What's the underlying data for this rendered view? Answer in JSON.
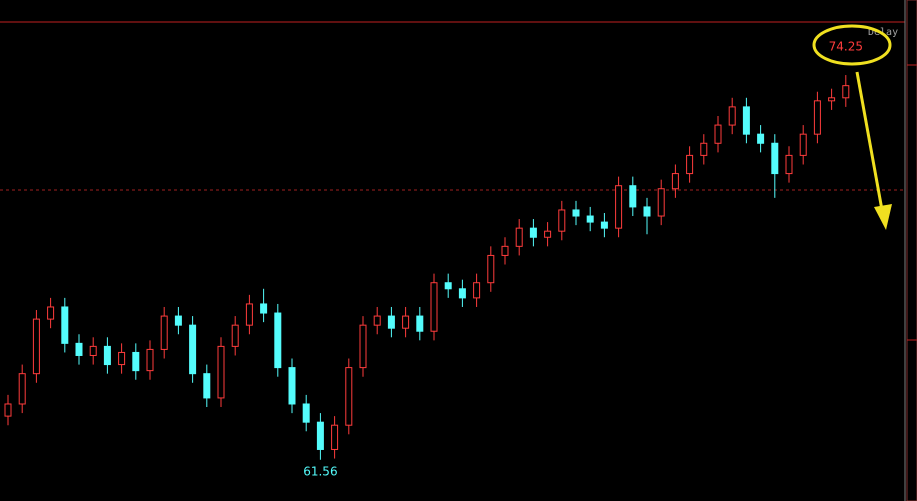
{
  "chart_data": {
    "type": "candlestick",
    "delay_label": "Delay",
    "ylim": [
      60.2,
      76.0
    ],
    "up_color": "#ff3c3c",
    "down_color": "#54fcfc",
    "reference_line": 70.46,
    "open": [
      63.0,
      63.4,
      64.4,
      66.2,
      66.6,
      65.4,
      65.0,
      65.3,
      64.7,
      65.1,
      64.5,
      65.2,
      66.3,
      66.0,
      64.4,
      63.6,
      65.3,
      66.0,
      66.7,
      66.4,
      64.6,
      63.4,
      62.8,
      61.9,
      62.7,
      64.6,
      66.0,
      66.3,
      65.9,
      66.3,
      65.8,
      67.4,
      67.2,
      66.9,
      67.4,
      68.3,
      68.6,
      69.2,
      68.9,
      69.1,
      69.8,
      69.6,
      69.4,
      69.2,
      70.6,
      69.9,
      69.6,
      70.5,
      71.0,
      71.6,
      72.0,
      72.6,
      73.2,
      72.3,
      72.0,
      71.0,
      71.6,
      72.3,
      73.4,
      73.5
    ],
    "high": [
      63.7,
      64.7,
      66.5,
      66.9,
      66.9,
      65.7,
      65.6,
      65.6,
      65.4,
      65.4,
      65.5,
      66.6,
      66.6,
      66.3,
      64.7,
      65.6,
      66.3,
      67.0,
      67.2,
      66.7,
      64.9,
      63.7,
      63.1,
      63.0,
      64.9,
      66.3,
      66.6,
      66.6,
      66.6,
      66.6,
      67.7,
      67.7,
      67.5,
      67.7,
      68.6,
      68.9,
      69.5,
      69.5,
      69.4,
      70.1,
      70.1,
      69.9,
      69.7,
      70.9,
      70.9,
      70.2,
      70.8,
      71.3,
      71.9,
      72.3,
      72.9,
      73.5,
      73.5,
      72.6,
      72.3,
      71.9,
      72.6,
      73.7,
      73.8,
      74.25
    ],
    "low": [
      62.7,
      63.1,
      64.1,
      65.9,
      65.1,
      64.7,
      64.7,
      64.4,
      64.4,
      64.2,
      64.2,
      64.9,
      65.7,
      64.1,
      63.3,
      63.3,
      65.0,
      65.7,
      66.1,
      64.3,
      63.1,
      62.5,
      61.56,
      61.6,
      62.4,
      64.3,
      65.7,
      65.6,
      65.6,
      65.5,
      65.5,
      66.9,
      66.6,
      66.6,
      67.1,
      68.0,
      68.3,
      68.6,
      68.6,
      68.8,
      69.3,
      69.1,
      68.9,
      68.9,
      69.6,
      69.0,
      69.3,
      70.2,
      70.7,
      71.3,
      71.7,
      72.3,
      72.0,
      71.7,
      70.2,
      70.7,
      71.3,
      72.0,
      73.1,
      73.2
    ],
    "close": [
      63.4,
      64.4,
      66.2,
      66.6,
      65.4,
      65.0,
      65.3,
      64.7,
      65.1,
      64.5,
      65.2,
      66.3,
      66.0,
      64.4,
      63.6,
      65.3,
      66.0,
      66.7,
      66.4,
      64.6,
      63.4,
      62.8,
      61.9,
      62.7,
      64.6,
      66.0,
      66.3,
      65.9,
      66.3,
      65.8,
      67.4,
      67.2,
      66.9,
      67.4,
      68.3,
      68.6,
      69.2,
      68.9,
      69.1,
      69.8,
      69.6,
      69.4,
      69.2,
      70.6,
      69.9,
      69.6,
      70.5,
      71.0,
      71.6,
      72.0,
      72.6,
      73.2,
      72.3,
      72.0,
      71.0,
      71.6,
      72.3,
      73.4,
      73.5,
      73.9
    ],
    "annotations": [
      {
        "label": "74.25",
        "value": 74.25,
        "color": "#ff3c3c"
      },
      {
        "label": "61.56",
        "value": 61.56,
        "color": "#54fcfc"
      }
    ]
  }
}
